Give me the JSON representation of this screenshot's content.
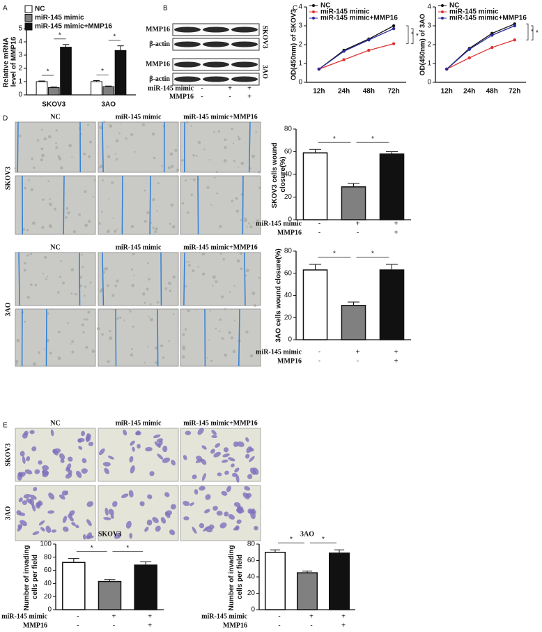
{
  "panel_labels": [
    "A",
    "B",
    "C",
    "D",
    "E"
  ],
  "blot": {
    "proteins": [
      "MMP16",
      "β-actin",
      "MMP16",
      "β-actin"
    ],
    "cell_lines": [
      "SKOV3",
      "3AO"
    ],
    "treatments": [
      {
        "name": "miR-145 mimic",
        "marks": [
          "-",
          "+",
          "+"
        ]
      },
      {
        "name": "MMP16",
        "marks": [
          "-",
          "-",
          "+"
        ]
      }
    ]
  },
  "wound_images": [
    {
      "row": "SKOV3",
      "columns": [
        "NC",
        "miR-145 mimic",
        "miR-145 mimic+MMP16"
      ]
    },
    {
      "row": "3AO",
      "columns": [
        "NC",
        "miR-145 mimic",
        "miR-145 mimic+MMP16"
      ]
    }
  ],
  "invasion_images": {
    "columns": [
      "NC",
      "miR-145 mimic",
      "miR-145 mimic+MMP16"
    ],
    "rows": [
      "SKOV3",
      "3AO"
    ]
  },
  "chart_data": [
    {
      "type": "bar",
      "categories": [
        "SKOV3",
        "3AO"
      ],
      "y_label": "Relative mRNA level of MMP16",
      "series": [
        {
          "name": "NC",
          "color": "#ffffff",
          "values": [
            1,
            1
          ],
          "errors": [
            0.05,
            0.08
          ]
        },
        {
          "name": "miR-145 mimic",
          "color": "#808080",
          "values": [
            0.55,
            0.62
          ],
          "errors": [
            0.04,
            0.05
          ]
        },
        {
          "name": "miR-145 mimic+MMP16",
          "color": "#111111",
          "values": [
            3.6,
            3.35
          ],
          "errors": [
            0.2,
            0.35
          ]
        }
      ],
      "ylim": [
        0,
        5
      ],
      "yticks": [
        0,
        1,
        2,
        3,
        4,
        5
      ],
      "annotations": [
        "*",
        "*",
        "*",
        "*"
      ],
      "legend": "top-left"
    },
    {
      "type": "line",
      "categories": [
        "12h",
        "24h",
        "48h",
        "72h"
      ],
      "y_label": "OD(450nm) of SKOV3",
      "series": [
        {
          "name": "NC",
          "color": "#111111",
          "values": [
            0.7,
            1.7,
            2.3,
            3.0
          ]
        },
        {
          "name": "miR-145 mimic",
          "color": "#e03030",
          "values": [
            0.7,
            1.2,
            1.7,
            2.05
          ]
        },
        {
          "name": "miR-145 mimic+MMP16",
          "color": "#2a2a9a",
          "values": [
            0.7,
            1.65,
            2.25,
            2.85
          ]
        }
      ],
      "ylim": [
        0,
        4
      ],
      "yticks": [
        0,
        1,
        2,
        3,
        4
      ],
      "annotations": [
        "*",
        "*"
      ],
      "legend": "top-left"
    },
    {
      "type": "line",
      "categories": [
        "12h",
        "24h",
        "48h",
        "72h"
      ],
      "y_label": "OD(450nm) of 3AO",
      "series": [
        {
          "name": "NC",
          "color": "#111111",
          "values": [
            0.7,
            1.8,
            2.6,
            3.1
          ]
        },
        {
          "name": "miR-145 mimic",
          "color": "#e03030",
          "values": [
            0.7,
            1.3,
            1.85,
            2.25
          ]
        },
        {
          "name": "miR-145 mimic+MMP16",
          "color": "#2a2a9a",
          "values": [
            0.7,
            1.75,
            2.5,
            3.0
          ]
        }
      ],
      "ylim": [
        0,
        4
      ],
      "yticks": [
        0,
        1,
        2,
        3,
        4
      ],
      "annotations": [
        "*",
        "*"
      ],
      "legend": "top-left"
    },
    {
      "type": "bar",
      "y_label": "SKOV3 cells wound closure(%)",
      "values": [
        59,
        29,
        58
      ],
      "errors": [
        3,
        3,
        2
      ],
      "colors": [
        "#ffffff",
        "#808080",
        "#111111"
      ],
      "ylim": [
        0,
        80
      ],
      "yticks": [
        0,
        20,
        40,
        60,
        80
      ],
      "annotations": [
        "*",
        "*"
      ],
      "treatments": [
        {
          "name": "miR-145 mimic",
          "marks": [
            "-",
            "+",
            "+"
          ]
        },
        {
          "name": "MMP16",
          "marks": [
            "-",
            "-",
            "+"
          ]
        }
      ]
    },
    {
      "type": "bar",
      "y_label": "3AO cells wound closure(%)",
      "values": [
        63,
        31,
        63
      ],
      "errors": [
        5,
        3,
        5
      ],
      "colors": [
        "#ffffff",
        "#808080",
        "#111111"
      ],
      "ylim": [
        0,
        80
      ],
      "yticks": [
        0,
        20,
        40,
        60,
        80
      ],
      "annotations": [
        "*",
        "*"
      ],
      "treatments": [
        {
          "name": "miR-145 mimic",
          "marks": [
            "-",
            "+",
            "+"
          ]
        },
        {
          "name": "MMP16",
          "marks": [
            "-",
            "-",
            "+"
          ]
        }
      ]
    },
    {
      "type": "bar",
      "title": "SKOV3",
      "y_label": "Number of invading cells per field",
      "values": [
        72,
        43,
        68
      ],
      "errors": [
        6,
        3,
        5
      ],
      "colors": [
        "#ffffff",
        "#808080",
        "#111111"
      ],
      "ylim": [
        0,
        100
      ],
      "yticks": [
        0,
        20,
        40,
        60,
        80,
        100
      ],
      "annotations": [
        "*",
        "*"
      ],
      "treatments": [
        {
          "name": "miR-145 mimic",
          "marks": [
            "-",
            "+",
            "+"
          ]
        },
        {
          "name": "MMP16",
          "marks": [
            "-",
            "-",
            "+"
          ]
        }
      ]
    },
    {
      "type": "bar",
      "title": "3AO",
      "y_label": "Number of invading cells per field",
      "values": [
        70,
        45,
        69
      ],
      "errors": [
        3,
        2,
        4
      ],
      "colors": [
        "#ffffff",
        "#808080",
        "#111111"
      ],
      "ylim": [
        0,
        80
      ],
      "yticks": [
        0,
        20,
        40,
        60,
        80
      ],
      "annotations": [
        "*",
        "*"
      ],
      "treatments": [
        {
          "name": "miR-145 mimic",
          "marks": [
            "-",
            "+",
            "+"
          ]
        },
        {
          "name": "MMP16",
          "marks": [
            "-",
            "-",
            "+"
          ]
        }
      ]
    }
  ]
}
